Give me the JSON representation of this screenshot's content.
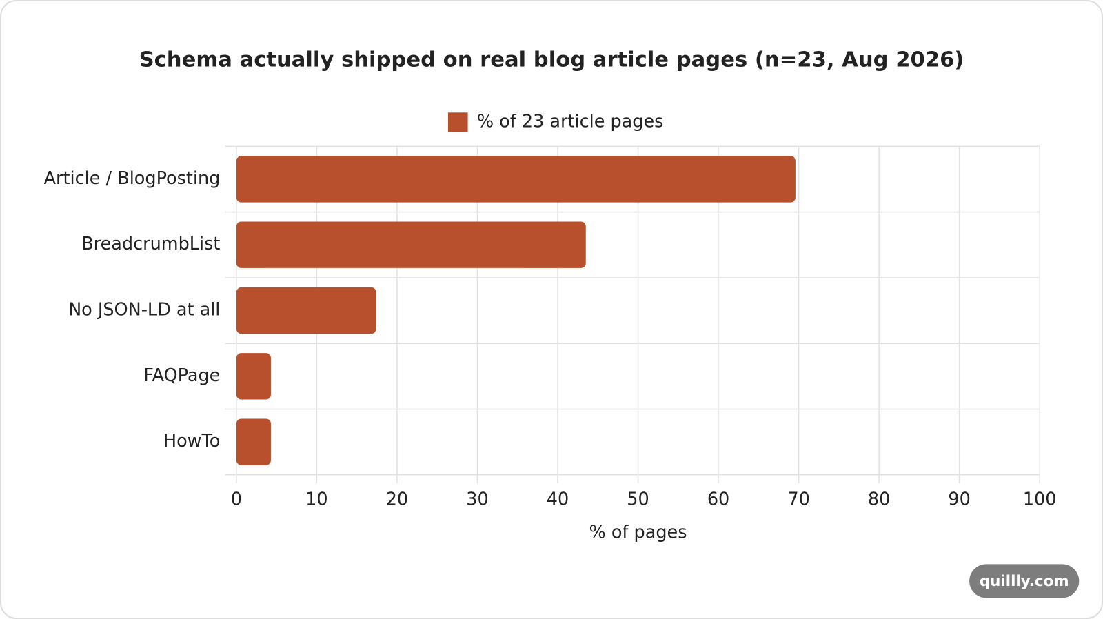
{
  "chart_data": {
    "type": "bar",
    "orientation": "horizontal",
    "title": "Schema actually shipped on real blog article pages (n=23, Aug 2026)",
    "categories": [
      "Article / BlogPosting",
      "BreadcrumbList",
      "No JSON-LD at all",
      "FAQPage",
      "HowTo"
    ],
    "series": [
      {
        "name": "% of 23 article pages",
        "color": "#b8502d",
        "values": [
          69.6,
          43.5,
          17.4,
          4.3,
          4.3
        ]
      }
    ],
    "xlabel": "% of pages",
    "xlim": [
      0,
      100
    ],
    "xticks": [
      0,
      10,
      20,
      30,
      40,
      50,
      60,
      70,
      80,
      90,
      100
    ],
    "grid": true,
    "legend": "top"
  },
  "watermark": "quillly.com"
}
